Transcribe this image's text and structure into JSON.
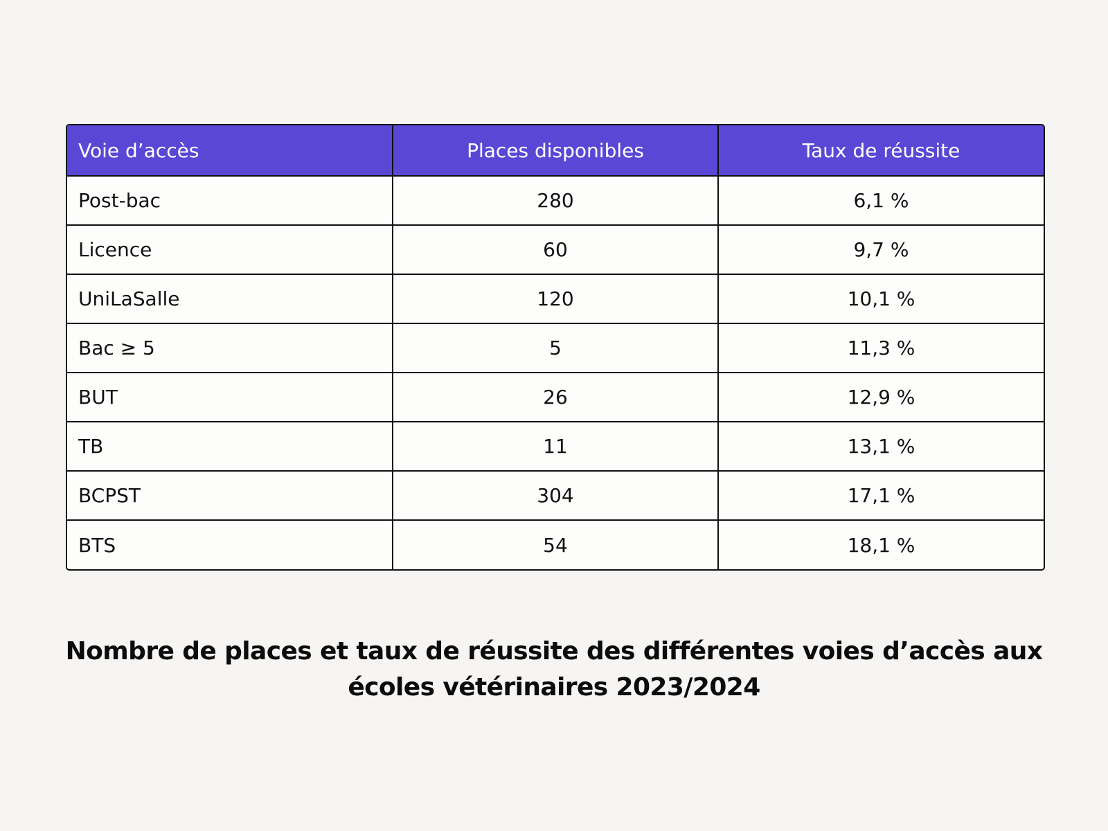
{
  "table": {
    "headers": [
      "Voie d’accès",
      "Places disponibles",
      "Taux de réussite"
    ],
    "rows": [
      [
        "Post-bac",
        "280",
        "6,1 %"
      ],
      [
        "Licence",
        "60",
        "9,7 %"
      ],
      [
        "UniLaSalle",
        "120",
        "10,1 %"
      ],
      [
        "Bac ≥ 5",
        "5",
        "11,3 %"
      ],
      [
        "BUT",
        "26",
        "12,9 %"
      ],
      [
        "TB",
        "11",
        "13,1 %"
      ],
      [
        "BCPST",
        "304",
        "17,1 %"
      ],
      [
        "BTS",
        "54",
        "18,1 %"
      ]
    ]
  },
  "caption": {
    "line1": "Nombre de places et taux de réussite des différentes voies d’accès aux",
    "line2": "écoles vétérinaires 2023/2024"
  },
  "colors": {
    "header_bg": "#5b47d6",
    "header_text": "#ffffff",
    "page_bg": "#f6f5f3",
    "border": "#111111"
  }
}
